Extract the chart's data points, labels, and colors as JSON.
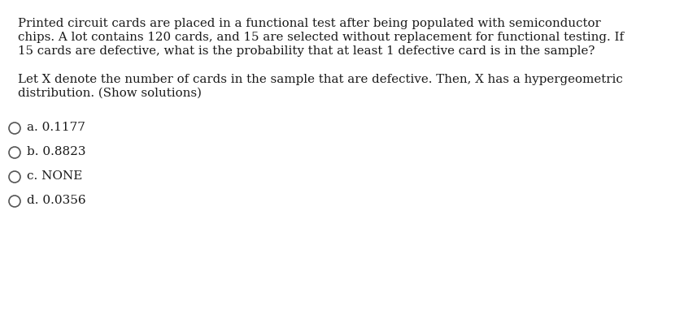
{
  "background_color": "#ffffff",
  "text_color": "#1a1a1a",
  "paragraph1_lines": [
    "Printed circuit cards are placed in a functional test after being populated with semiconductor",
    "chips. A lot contains 120 cards, and 15 are selected without replacement for functional testing. If",
    "15 cards are defective, what is the probability that at least 1 defective card is in the sample?"
  ],
  "paragraph2_lines": [
    "Let X denote the number of cards in the sample that are defective. Then, X has a hypergeometric",
    "distribution. (Show solutions)"
  ],
  "options": [
    {
      "label": "a.",
      "value": "0.1177"
    },
    {
      "label": "b.",
      "value": "0.8823"
    },
    {
      "label": "c.",
      "value": "NONE"
    },
    {
      "label": "d.",
      "value": "0.0356"
    }
  ],
  "font_size_text": 10.8,
  "font_size_options": 11.0,
  "fig_width": 8.57,
  "fig_height": 3.87,
  "dpi": 100
}
